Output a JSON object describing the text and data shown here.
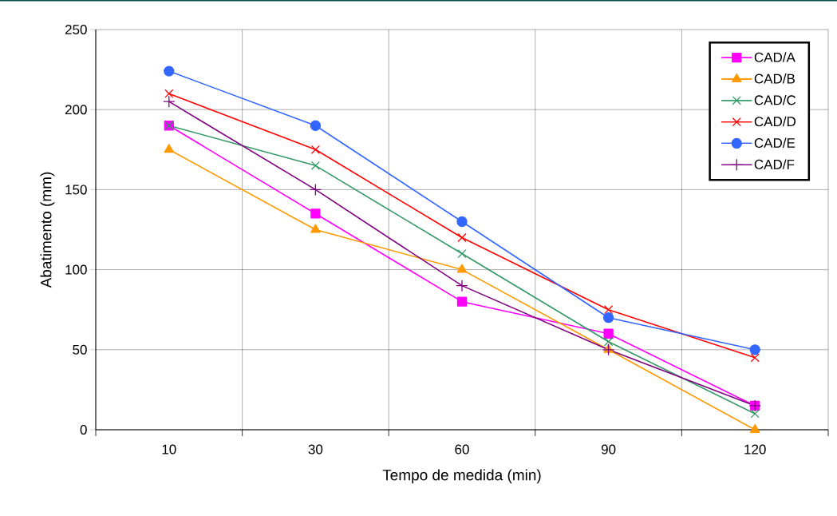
{
  "chart_data": {
    "type": "line",
    "xlabel": "Tempo de medida (min)",
    "ylabel": "Abatimento (mm)",
    "categories": [
      "10",
      "30",
      "60",
      "90",
      "120"
    ],
    "series": [
      {
        "name": "CAD/A",
        "color": "#ff00ff",
        "marker": "square",
        "values": [
          190,
          135,
          80,
          60,
          15
        ]
      },
      {
        "name": "CAD/B",
        "color": "#ff9900",
        "marker": "triangle",
        "values": [
          175,
          125,
          100,
          50,
          0
        ]
      },
      {
        "name": "CAD/C",
        "color": "#339966",
        "marker": "cross",
        "values": [
          190,
          165,
          110,
          55,
          10
        ]
      },
      {
        "name": "CAD/D",
        "color": "#ff0000",
        "marker": "cross",
        "values": [
          210,
          175,
          120,
          75,
          45
        ]
      },
      {
        "name": "CAD/E",
        "color": "#3366ff",
        "marker": "circle",
        "values": [
          224,
          190,
          130,
          70,
          50
        ]
      },
      {
        "name": "CAD/F",
        "color": "#800080",
        "marker": "plus",
        "values": [
          205,
          150,
          90,
          50,
          15
        ]
      }
    ],
    "ylim": [
      0,
      250
    ],
    "yticks": [
      0,
      50,
      100,
      150,
      200,
      250
    ],
    "grid": true,
    "legend": "top right",
    "line_style": "solid"
  }
}
